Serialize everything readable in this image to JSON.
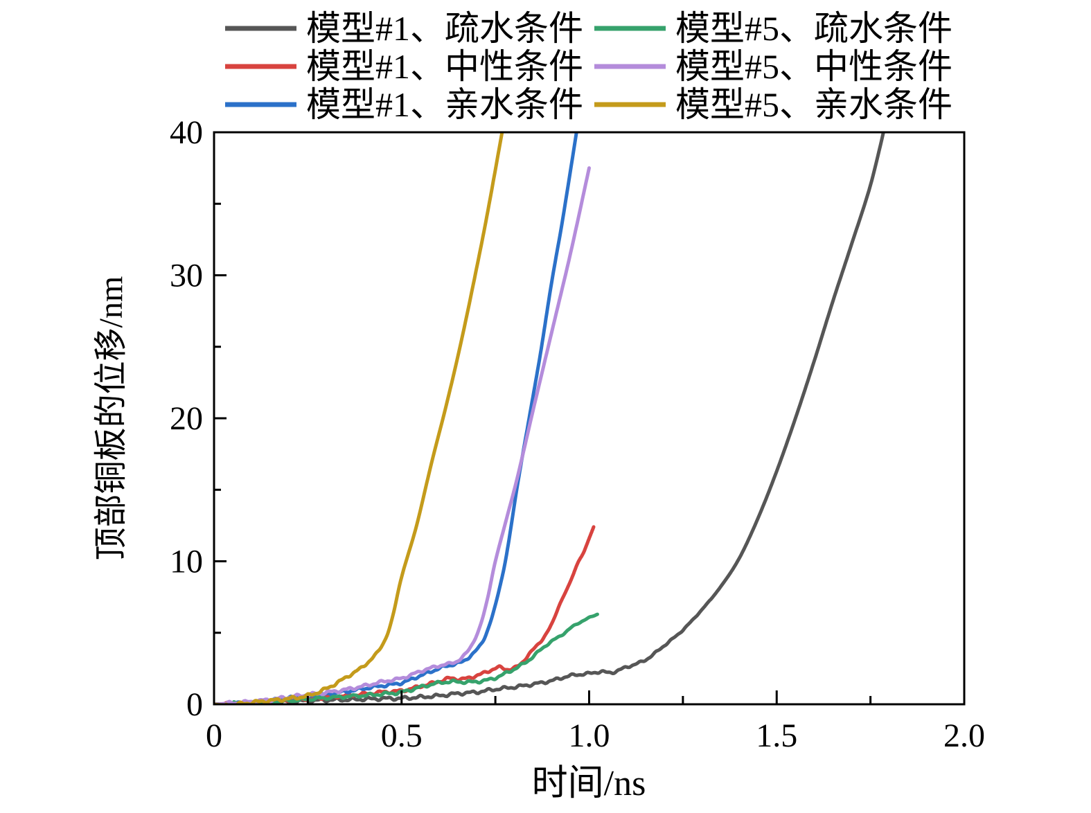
{
  "figure": {
    "background": "#ffffff",
    "axis_color": "#000000"
  },
  "chart_data": {
    "type": "line",
    "title": "",
    "xlabel": "时间/ns",
    "ylabel": "顶部铜板的位移/nm",
    "xlim": [
      0,
      2.0
    ],
    "ylim": [
      0,
      40
    ],
    "grid": false,
    "legend_position": "top",
    "legend_columns": 2,
    "x_ticks": {
      "major": [
        {
          "v": 0.0,
          "label": "0"
        },
        {
          "v": 0.5,
          "label": "0.5"
        },
        {
          "v": 1.0,
          "label": "1.0"
        },
        {
          "v": 1.5,
          "label": "1.5"
        },
        {
          "v": 2.0,
          "label": "2.0"
        }
      ],
      "minor": [
        0.25,
        0.75,
        1.25,
        1.75
      ]
    },
    "y_ticks": {
      "major": [
        {
          "v": 0,
          "label": "0"
        },
        {
          "v": 10,
          "label": "10"
        },
        {
          "v": 20,
          "label": "20"
        },
        {
          "v": 30,
          "label": "30"
        },
        {
          "v": 40,
          "label": "40"
        }
      ],
      "minor": [
        5,
        15,
        25,
        35
      ]
    },
    "legend_order": [
      0,
      3,
      1,
      4,
      2,
      5
    ],
    "series": [
      {
        "name": "模型#1、疏水条件",
        "color": "#565656",
        "points": [
          [
            0,
            0
          ],
          [
            0.05,
            0.03
          ],
          [
            0.1,
            0.06
          ],
          [
            0.15,
            0.12
          ],
          [
            0.2,
            0.18
          ],
          [
            0.25,
            0.24
          ],
          [
            0.3,
            0.3
          ],
          [
            0.35,
            0.32
          ],
          [
            0.4,
            0.36
          ],
          [
            0.45,
            0.4
          ],
          [
            0.5,
            0.42
          ],
          [
            0.55,
            0.5
          ],
          [
            0.6,
            0.6
          ],
          [
            0.65,
            0.75
          ],
          [
            0.7,
            0.85
          ],
          [
            0.75,
            1.05
          ],
          [
            0.8,
            1.2
          ],
          [
            0.85,
            1.4
          ],
          [
            0.9,
            1.65
          ],
          [
            0.95,
            2.0
          ],
          [
            1.0,
            2.15
          ],
          [
            1.03,
            2.28
          ],
          [
            1.06,
            2.22
          ],
          [
            1.1,
            2.6
          ],
          [
            1.15,
            3.1
          ],
          [
            1.2,
            4.1
          ],
          [
            1.25,
            5.2
          ],
          [
            1.3,
            6.6
          ],
          [
            1.35,
            8.2
          ],
          [
            1.4,
            10.2
          ],
          [
            1.45,
            13.0
          ],
          [
            1.5,
            16.3
          ],
          [
            1.55,
            20.0
          ],
          [
            1.6,
            24.0
          ],
          [
            1.65,
            28.2
          ],
          [
            1.7,
            32.2
          ],
          [
            1.75,
            36.3
          ],
          [
            1.79,
            40.6
          ]
        ]
      },
      {
        "name": "模型#1、中性条件",
        "color": "#d8433f",
        "points": [
          [
            0,
            0
          ],
          [
            0.1,
            0.1
          ],
          [
            0.2,
            0.3
          ],
          [
            0.3,
            0.5
          ],
          [
            0.35,
            0.6
          ],
          [
            0.4,
            0.72
          ],
          [
            0.45,
            0.85
          ],
          [
            0.5,
            0.95
          ],
          [
            0.55,
            1.25
          ],
          [
            0.6,
            1.6
          ],
          [
            0.63,
            1.82
          ],
          [
            0.66,
            1.75
          ],
          [
            0.7,
            2.0
          ],
          [
            0.73,
            2.3
          ],
          [
            0.76,
            2.58
          ],
          [
            0.78,
            2.45
          ],
          [
            0.8,
            2.52
          ],
          [
            0.82,
            2.9
          ],
          [
            0.84,
            3.5
          ],
          [
            0.86,
            4.1
          ],
          [
            0.88,
            4.7
          ],
          [
            0.9,
            5.6
          ],
          [
            0.92,
            6.9
          ],
          [
            0.94,
            8.0
          ],
          [
            0.955,
            8.9
          ],
          [
            0.97,
            9.9
          ],
          [
            0.985,
            10.6
          ],
          [
            1.0,
            11.6
          ],
          [
            1.012,
            12.4
          ]
        ]
      },
      {
        "name": "模型#1、亲水条件",
        "color": "#2b71c9",
        "points": [
          [
            0,
            0
          ],
          [
            0.05,
            0.05
          ],
          [
            0.1,
            0.12
          ],
          [
            0.15,
            0.25
          ],
          [
            0.2,
            0.42
          ],
          [
            0.25,
            0.55
          ],
          [
            0.3,
            0.7
          ],
          [
            0.35,
            0.88
          ],
          [
            0.4,
            1.1
          ],
          [
            0.45,
            1.3
          ],
          [
            0.5,
            1.5
          ],
          [
            0.55,
            2.0
          ],
          [
            0.58,
            2.3
          ],
          [
            0.61,
            2.6
          ],
          [
            0.64,
            2.8
          ],
          [
            0.66,
            2.95
          ],
          [
            0.68,
            3.3
          ],
          [
            0.7,
            3.8
          ],
          [
            0.72,
            4.6
          ],
          [
            0.74,
            6.0
          ],
          [
            0.76,
            8.0
          ],
          [
            0.78,
            10.5
          ],
          [
            0.81,
            15.5
          ],
          [
            0.84,
            20.0
          ],
          [
            0.87,
            24.5
          ],
          [
            0.9,
            29.5
          ],
          [
            0.93,
            34.0
          ],
          [
            0.97,
            40.6
          ]
        ]
      },
      {
        "name": "模型#5、疏水条件",
        "color": "#36a26c",
        "points": [
          [
            0,
            0
          ],
          [
            0.1,
            0.1
          ],
          [
            0.2,
            0.25
          ],
          [
            0.3,
            0.45
          ],
          [
            0.4,
            0.62
          ],
          [
            0.45,
            0.72
          ],
          [
            0.5,
            0.85
          ],
          [
            0.55,
            1.2
          ],
          [
            0.6,
            1.5
          ],
          [
            0.64,
            1.58
          ],
          [
            0.68,
            1.55
          ],
          [
            0.72,
            1.65
          ],
          [
            0.75,
            1.85
          ],
          [
            0.78,
            2.2
          ],
          [
            0.81,
            2.6
          ],
          [
            0.84,
            3.1
          ],
          [
            0.87,
            3.8
          ],
          [
            0.9,
            4.4
          ],
          [
            0.93,
            4.9
          ],
          [
            0.96,
            5.5
          ],
          [
            1.0,
            6.05
          ],
          [
            1.022,
            6.3
          ]
        ]
      },
      {
        "name": "模型#5、中性条件",
        "color": "#b48cdb",
        "points": [
          [
            0,
            0
          ],
          [
            0.05,
            0.08
          ],
          [
            0.1,
            0.18
          ],
          [
            0.15,
            0.32
          ],
          [
            0.2,
            0.5
          ],
          [
            0.25,
            0.66
          ],
          [
            0.3,
            0.82
          ],
          [
            0.35,
            1.02
          ],
          [
            0.4,
            1.28
          ],
          [
            0.45,
            1.58
          ],
          [
            0.5,
            1.82
          ],
          [
            0.55,
            2.3
          ],
          [
            0.58,
            2.55
          ],
          [
            0.61,
            2.75
          ],
          [
            0.63,
            2.85
          ],
          [
            0.65,
            3.05
          ],
          [
            0.67,
            3.5
          ],
          [
            0.69,
            4.3
          ],
          [
            0.71,
            5.5
          ],
          [
            0.73,
            7.5
          ],
          [
            0.75,
            10.0
          ],
          [
            0.78,
            13.0
          ],
          [
            0.81,
            16.0
          ],
          [
            0.85,
            20.5
          ],
          [
            0.9,
            26.0
          ],
          [
            0.95,
            31.5
          ],
          [
            1.0,
            37.5
          ]
        ]
      },
      {
        "name": "模型#5、亲水条件",
        "color": "#c49b1b",
        "points": [
          [
            0,
            0
          ],
          [
            0.04,
            -0.06
          ],
          [
            0.08,
            0.05
          ],
          [
            0.12,
            0.18
          ],
          [
            0.16,
            0.28
          ],
          [
            0.2,
            0.4
          ],
          [
            0.25,
            0.6
          ],
          [
            0.3,
            1.1
          ],
          [
            0.35,
            1.85
          ],
          [
            0.4,
            2.7
          ],
          [
            0.44,
            3.8
          ],
          [
            0.47,
            5.5
          ],
          [
            0.5,
            8.9
          ],
          [
            0.54,
            12.5
          ],
          [
            0.58,
            16.9
          ],
          [
            0.62,
            21.0
          ],
          [
            0.66,
            25.5
          ],
          [
            0.7,
            30.5
          ],
          [
            0.73,
            34.5
          ],
          [
            0.772,
            40.6
          ]
        ]
      }
    ]
  }
}
